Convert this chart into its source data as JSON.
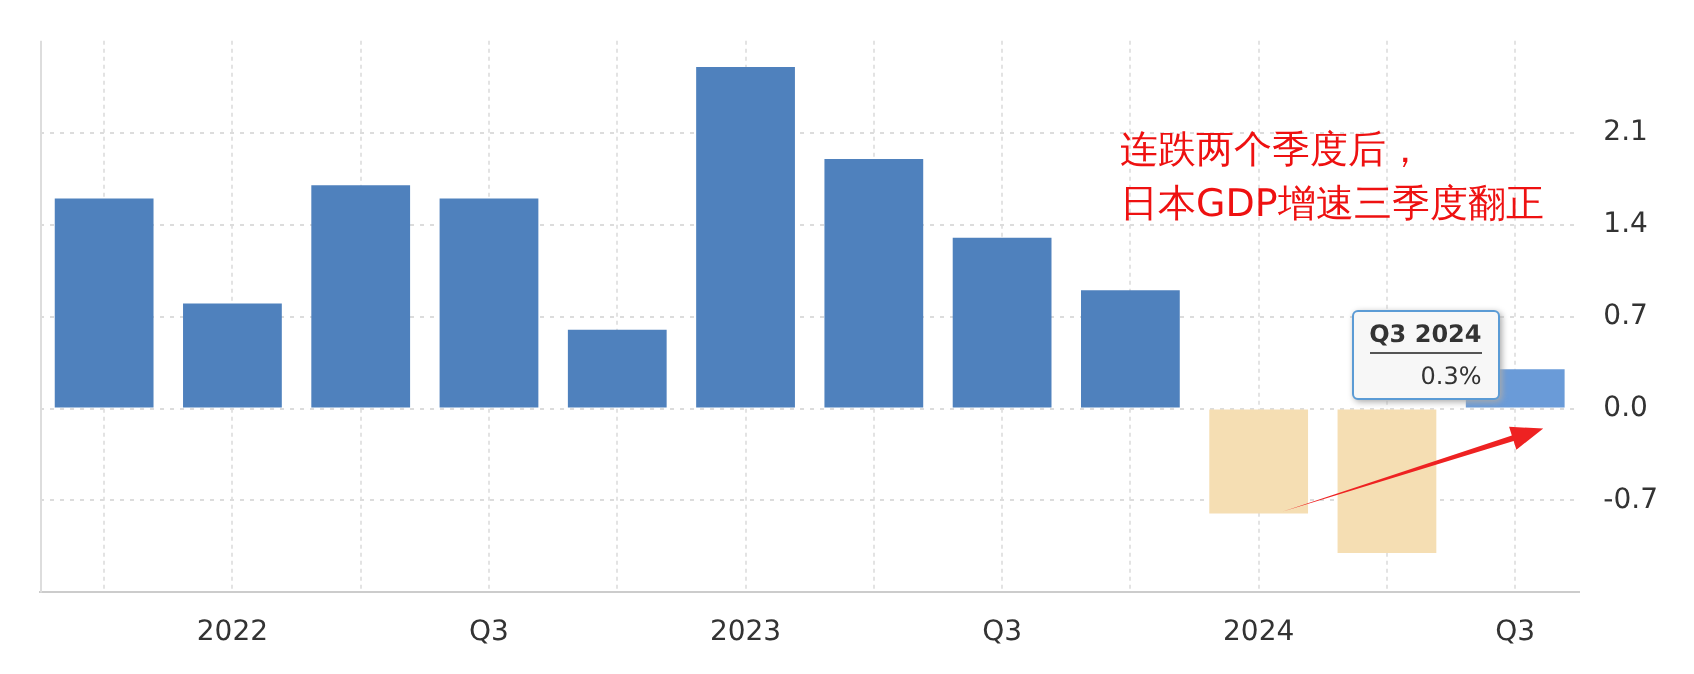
{
  "chart_data": {
    "type": "bar",
    "categories": [
      null,
      "2022",
      null,
      "Q3",
      null,
      "2023",
      null,
      "Q3",
      null,
      "2024",
      null,
      "Q3"
    ],
    "values": [
      1.6,
      0.8,
      1.7,
      1.6,
      0.6,
      2.6,
      1.9,
      1.3,
      0.9,
      -0.8,
      -1.1,
      0.3
    ],
    "colors": [
      "#4f81bd",
      "#4f81bd",
      "#4f81bd",
      "#4f81bd",
      "#4f81bd",
      "#4f81bd",
      "#4f81bd",
      "#4f81bd",
      "#4f81bd",
      "#f5deb3",
      "#f5deb3",
      "#6a9bd8"
    ],
    "value_labels": [
      null,
      null,
      null,
      null,
      null,
      null,
      null,
      null,
      null,
      null,
      null,
      "0.3%"
    ],
    "ylim": [
      -1.4,
      2.8
    ],
    "yticks": [
      -0.7,
      {
        "value": 0,
        "label": "0.0"
      },
      0.7,
      1.4,
      2.1
    ],
    "grid": true,
    "annotations": [
      "连跌两个季度后，日本GDP增速三季度翻正",
      "Q3 2024"
    ]
  }
}
